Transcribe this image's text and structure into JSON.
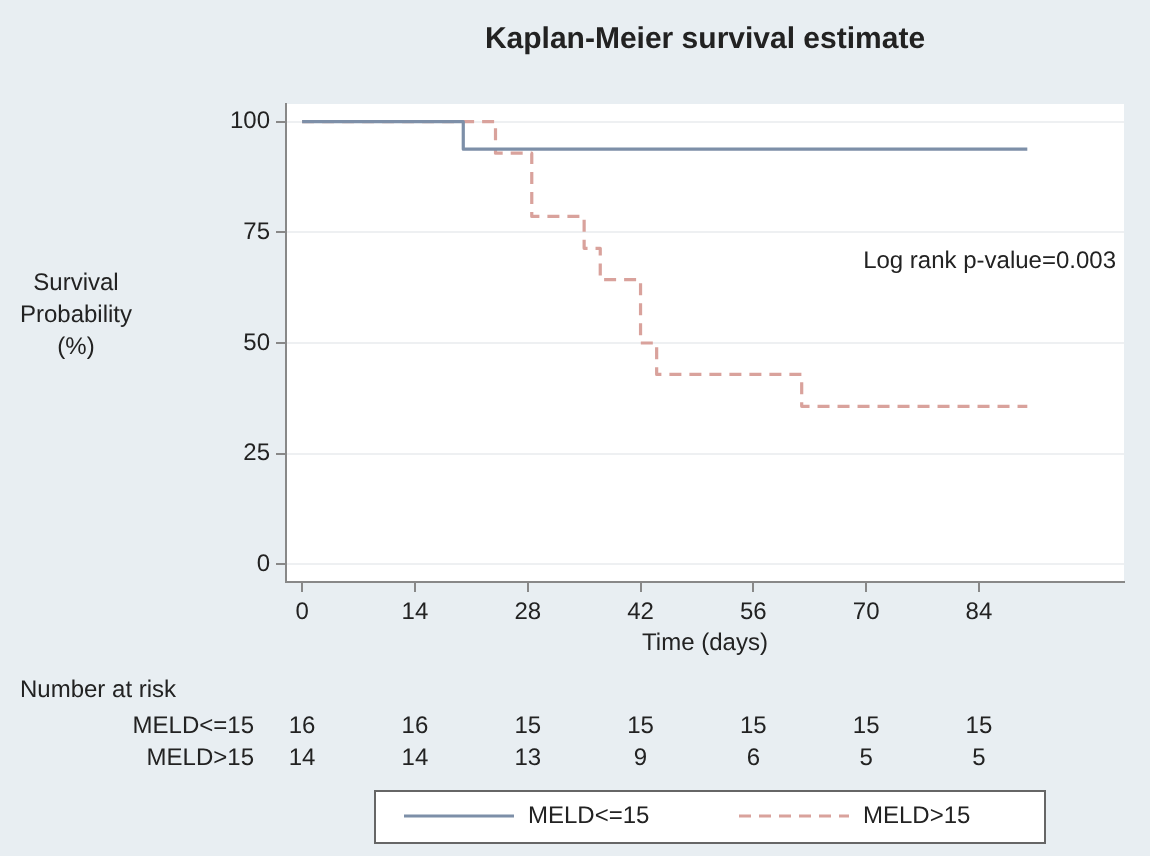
{
  "chart_data": {
    "type": "step",
    "title": "Kaplan-Meier survival estimate",
    "xlabel": "Time (days)",
    "ylabel": "Survival Probability (%)",
    "xlim": [
      -2,
      102
    ],
    "xticks": [
      0,
      14,
      28,
      42,
      56,
      70,
      84
    ],
    "ylim": [
      -4,
      104
    ],
    "yticks": [
      0,
      25,
      50,
      75,
      100
    ],
    "grid": "y",
    "legend": "bottom",
    "line_style": "solid",
    "series": [
      {
        "name": "MELD<=15",
        "color": "#7d8fa8",
        "x": [
          0,
          20,
          90
        ],
        "values": [
          100,
          93.8,
          93.8
        ]
      },
      {
        "name": "MELD>15",
        "color": "#d9a29c",
        "line_style": "dashed",
        "x": [
          0,
          24,
          28.5,
          35,
          37,
          42,
          44,
          62,
          90
        ],
        "values": [
          100,
          92.9,
          78.6,
          71.4,
          64.3,
          50,
          42.9,
          35.7,
          35.7
        ]
      }
    ],
    "annotations": [
      "Log rank p-value=0.003",
      "Number at risk",
      "MELD<=15 16 16 15 15 15 15 15",
      "MELD>15 14 14 13 9 6 5 5"
    ]
  }
}
